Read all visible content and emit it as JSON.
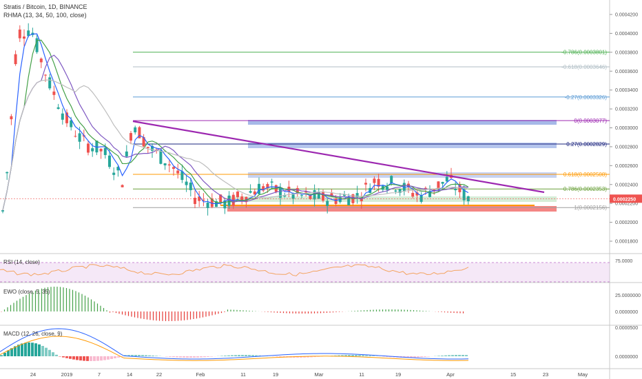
{
  "header": {
    "symbol": "Stratis / Bitcoin, 1D, BINANCE",
    "rhma": "RHMA (13, 34, 50, 100, close)"
  },
  "indicators": {
    "rsi": "RSI (14, close)",
    "ewo": "EWO (close, 5, 35)",
    "macd": "MACD (12, 26, close, 9)"
  },
  "chart_data": {
    "type": "candlestick",
    "symbol": "Stratis / Bitcoin",
    "timeframe": "1D",
    "exchange": "BINANCE",
    "price_axis_ticks": [
      "0.0004200",
      "0.0004000",
      "0.0003800",
      "0.0003600",
      "0.0003400",
      "0.0003200",
      "0.0003000",
      "0.0002800",
      "0.0002600",
      "0.0002400",
      "0.0002200",
      "0.0002000",
      "0.0001800"
    ],
    "rsi_axis_ticks": [
      "75.0000"
    ],
    "ewo_axis_ticks": [
      "25.0000000",
      "0.0000000"
    ],
    "macd_axis_ticks": [
      "0.0000500",
      "0.0000000"
    ],
    "x_ticks": [
      "24",
      "2019",
      "7",
      "14",
      "22",
      "Feb",
      "11",
      "19",
      "Mar",
      "11",
      "19",
      "Apr",
      "15",
      "23",
      "May"
    ],
    "last_price": "0.0002250",
    "fib_levels": [
      {
        "label": "-0.786(0.0003801)",
        "value": 0.0003801,
        "color": "#4caf50"
      },
      {
        "label": "-0.618(0.0003646)",
        "value": 0.0003646,
        "color": "#b0bec5"
      },
      {
        "label": "-0.27(0.0003326)",
        "value": 0.0003326,
        "color": "#5b9bd5"
      },
      {
        "label": "0(0.0003077)",
        "value": 0.0003077,
        "color": "#9c27b0"
      },
      {
        "label": "0.27(0.0002829)",
        "value": 0.0002829,
        "color": "#1a237e"
      },
      {
        "label": "0.618(0.0002508)",
        "value": 0.0002508,
        "color": "#ff9800"
      },
      {
        "label": "0.786(0.0002353)",
        "value": 0.0002353,
        "color": "#689f38"
      },
      {
        "label": "1(0.0002156)",
        "value": 0.0002156,
        "color": "#9e9e9e"
      }
    ],
    "colors": {
      "up": "#26a69a",
      "down": "#ef5350",
      "trendline": "#9c27b0",
      "zone": "#5c7fd6"
    }
  }
}
